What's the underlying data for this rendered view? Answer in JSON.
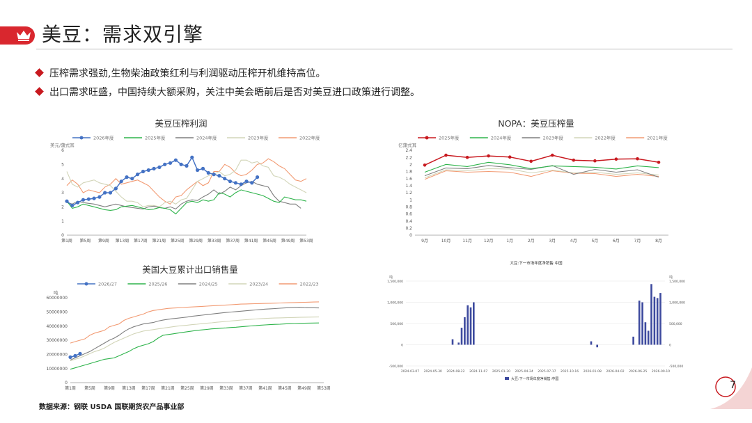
{
  "page": {
    "title": "美豆：需求双引擎",
    "bullets": [
      "压榨需求强劲,生物柴油政策红利与利润驱动压榨开机维持高位。",
      "出口需求旺盛，中国持续大额采购，关注中美会晤前后是否对美豆进口政策进行调整。"
    ],
    "source": "数据来源：钢联 USDA 国联期货农产品事业部",
    "page_number": "7"
  },
  "chart_data": [
    {
      "type": "line",
      "title": "美豆压榨利润",
      "ylabel": "美元/蒲式耳",
      "ylim": [
        0,
        6
      ],
      "yticks": [
        0,
        1,
        2,
        3,
        4,
        5,
        6
      ],
      "xticklabels": [
        "第1周",
        "第5周",
        "第9周",
        "第13周",
        "第17周",
        "第21周",
        "第25周",
        "第29周",
        "第33周",
        "第37周",
        "第41周",
        "第45周",
        "第49周",
        "第53周"
      ],
      "series": [
        {
          "name": "2026年度",
          "color": "#4472c4",
          "values": [
            2.4,
            2.1,
            2.3,
            2.5,
            2.55,
            2.6,
            2.7,
            3.0,
            3.0,
            3.3,
            3.8,
            4.1,
            4.0,
            4.3,
            4.5,
            4.6,
            4.7,
            4.8,
            5.0,
            5.1,
            5.3,
            5.0,
            4.9,
            5.5,
            4.6,
            4.7,
            4.4,
            4.3,
            4.2,
            4.0,
            3.8,
            3.7,
            3.6,
            3.8,
            3.7,
            4.1
          ]
        },
        {
          "name": "2025年度",
          "color": "#2db34a",
          "values": [
            2.4,
            1.9,
            2.0,
            2.2,
            2.1,
            2.0,
            1.9,
            1.8,
            1.75,
            1.8,
            2.0,
            2.05,
            2.1,
            2.0,
            1.9,
            1.8,
            1.85,
            1.95,
            1.9,
            1.8,
            1.5,
            1.9,
            2.3,
            2.4,
            2.3,
            2.5,
            2.4,
            2.5,
            3.0,
            2.9,
            2.7,
            3.0,
            3.2,
            3.1,
            3.0,
            2.9,
            2.8,
            2.6,
            2.4,
            2.3,
            2.7,
            2.6,
            2.5,
            2.5,
            2.4
          ]
        },
        {
          "name": "2024年度",
          "color": "#7f7f7f",
          "values": [
            2.3,
            2.2,
            2.4,
            2.3,
            2.25,
            2.2,
            2.1,
            2.0,
            2.1,
            2.2,
            2.1,
            2.0,
            1.95,
            1.9,
            1.85,
            2.0,
            2.05,
            1.95,
            1.9,
            2.0,
            1.85,
            2.2,
            2.4,
            2.5,
            2.45,
            2.7,
            2.9,
            3.2,
            2.9,
            3.1,
            3.4,
            3.2,
            3.5,
            3.7,
            3.8,
            3.6,
            3.5,
            3.4,
            2.8,
            2.4,
            2.3,
            2.2,
            2.2,
            1.9
          ]
        },
        {
          "name": "2023年度",
          "color": "#d2d5b8",
          "values": [
            4.5,
            3.6,
            3.4,
            3.7,
            3.8,
            3.9,
            3.7,
            3.6,
            3.5,
            3.1,
            2.7,
            2.4,
            2.4,
            2.3,
            2.0,
            2.1,
            2.1,
            2.0,
            2.3,
            2.4,
            2.2,
            2.5,
            2.6,
            3.2,
            3.8,
            4.0,
            4.2,
            4.3,
            4.5,
            4.2,
            4.3,
            4.6,
            5.3,
            5.3,
            5.1,
            5.2,
            4.9,
            4.8,
            4.2,
            4.1,
            3.9,
            3.6,
            3.4,
            3.2,
            3.0
          ]
        },
        {
          "name": "2022年度",
          "color": "#f29a72",
          "values": [
            3.5,
            3.9,
            3.6,
            3.0,
            3.2,
            3.1,
            3.0,
            3.4,
            3.6,
            4.0,
            3.6,
            3.7,
            3.8,
            3.9,
            3.7,
            3.5,
            3.1,
            2.7,
            2.4,
            2.2,
            2.7,
            2.8,
            3.2,
            3.5,
            3.8,
            3.5,
            3.7,
            4.5,
            4.5,
            5.0,
            4.8,
            4.4,
            4.2,
            4.3,
            4.6,
            5.0,
            5.1,
            5.4,
            5.2,
            4.9,
            4.7,
            4.3,
            3.9,
            3.8,
            4.0
          ]
        }
      ]
    },
    {
      "type": "line",
      "title": "NOPA：美豆压榨量",
      "ylabel": "亿蒲式耳",
      "ylim": [
        0,
        2.4
      ],
      "yticks": [
        0,
        0.2,
        0.4,
        0.6,
        0.8,
        1,
        1.2,
        1.4,
        1.6,
        1.8,
        2,
        2.2,
        2.4
      ],
      "xticklabels": [
        "9月",
        "10月",
        "11月",
        "12月",
        "1月",
        "2月",
        "3月",
        "4月",
        "5月",
        "6月",
        "7月",
        "8月"
      ],
      "series": [
        {
          "name": "2025年度",
          "color": "#c8191f",
          "values": [
            1.98,
            2.26,
            2.2,
            2.24,
            2.21,
            2.09,
            2.26,
            2.12,
            2.1,
            2.15,
            2.16,
            2.06
          ]
        },
        {
          "name": "2024年度",
          "color": "#2db34a",
          "values": [
            1.78,
            2.0,
            1.94,
            2.06,
            1.99,
            1.88,
            1.96,
            1.94,
            1.92,
            1.87,
            1.96,
            1.91
          ]
        },
        {
          "name": "2023年度",
          "color": "#7f7f7f",
          "values": [
            1.68,
            1.9,
            1.88,
            1.97,
            1.91,
            1.86,
            1.97,
            1.72,
            1.86,
            1.78,
            1.85,
            1.64
          ]
        },
        {
          "name": "2022年度",
          "color": "#d2d5b8",
          "values": [
            1.62,
            1.85,
            1.82,
            1.88,
            1.87,
            1.76,
            1.84,
            1.76,
            1.78,
            1.72,
            1.76,
            1.7
          ]
        },
        {
          "name": "2021年度",
          "color": "#f29a72",
          "values": [
            1.58,
            1.82,
            1.78,
            1.8,
            1.78,
            1.66,
            1.82,
            1.75,
            1.74,
            1.66,
            1.72,
            1.66
          ]
        }
      ]
    },
    {
      "type": "line",
      "title": "美国大豆累计出口销售量",
      "ylabel": "吨",
      "ylim": [
        0,
        60000000
      ],
      "yticks": [
        0,
        10000000,
        20000000,
        30000000,
        40000000,
        50000000,
        60000000
      ],
      "xticklabels": [
        "第1周",
        "第5周",
        "第9周",
        "第13周",
        "第17周",
        "第21周",
        "第25周",
        "第29周",
        "第33周",
        "第37周",
        "第41周",
        "第45周",
        "第49周",
        "第53周"
      ],
      "series": [
        {
          "name": "2026/27",
          "color": "#4472c4",
          "values": [
            18000000,
            19000000,
            20500000
          ]
        },
        {
          "name": "2025/26",
          "color": "#2db34a",
          "values": [
            9500000,
            10500000,
            11500000,
            12500000,
            13500000,
            14500000,
            15500000,
            16500000,
            17000000,
            17500000,
            19000000,
            20500000,
            22000000,
            24000000,
            25500000,
            26500000,
            27500000,
            29000000,
            31500000,
            33500000,
            34000000,
            34500000,
            35000000,
            35500000,
            36000000,
            36500000,
            37000000,
            37300000,
            37600000,
            38000000,
            38200000,
            38500000,
            38700000,
            39000000,
            39200000,
            39500000,
            39800000,
            40100000,
            40300000,
            40600000,
            40800000,
            41000000,
            41200000,
            41300000,
            41500000,
            41700000,
            41800000,
            41900000,
            42000000,
            42100000,
            42150000,
            42200000
          ]
        },
        {
          "name": "2024/25",
          "color": "#7f7f7f",
          "values": [
            16000000,
            17500000,
            19000000,
            20500000,
            22000000,
            24000000,
            26000000,
            28000000,
            30000000,
            31500000,
            33500000,
            36000000,
            38000000,
            39500000,
            40500000,
            41500000,
            42000000,
            42500000,
            43500000,
            44200000,
            44800000,
            45200000,
            45600000,
            46000000,
            46400000,
            46900000,
            47300000,
            47700000,
            48100000,
            48500000,
            48900000,
            49300000,
            49600000,
            49900000,
            50200000,
            50500000,
            50800000,
            51100000,
            51400000,
            51700000,
            52000000,
            52200000,
            52400000,
            52600000,
            52800000,
            53000000,
            53200000,
            53300000,
            53000000,
            52900000,
            52900000,
            52800000
          ]
        },
        {
          "name": "2023/24",
          "color": "#d2d5b8",
          "values": [
            15500000,
            16500000,
            17500000,
            19000000,
            20500000,
            22000000,
            23000000,
            24500000,
            26500000,
            28500000,
            30000000,
            31500000,
            33000000,
            34500000,
            35500000,
            36500000,
            37000000,
            37500000,
            38000000,
            38500000,
            39000000,
            39500000,
            40000000,
            40300000,
            40600000,
            41000000,
            41300000,
            41700000,
            42000000,
            42300000,
            42700000,
            43000000,
            43300000,
            43600000,
            43900000,
            44200000,
            44500000,
            44800000,
            45000000,
            45200000,
            45400000,
            45600000,
            45700000,
            45800000,
            45900000,
            46000000,
            46100000,
            46200000,
            46300000,
            46350000,
            46400000,
            46450000
          ]
        },
        {
          "name": "2022/23",
          "color": "#f29a72",
          "values": [
            28000000,
            29000000,
            30000000,
            31000000,
            33500000,
            35000000,
            36000000,
            37000000,
            39500000,
            40500000,
            41500000,
            44000000,
            45500000,
            46500000,
            47500000,
            48500000,
            50000000,
            51000000,
            51500000,
            52000000,
            52500000,
            52700000,
            52900000,
            53100000,
            53300000,
            53500000,
            53700000,
            53900000,
            54100000,
            54300000,
            54500000,
            54700000,
            54900000,
            55100000,
            55300000,
            55500000,
            55600000,
            55700000,
            55800000,
            55900000,
            56000000,
            56100000,
            56200000,
            56300000,
            56400000,
            56500000,
            56600000,
            56700000,
            56800000,
            56900000,
            57000000,
            57100000
          ]
        }
      ]
    },
    {
      "type": "bar",
      "title": "大豆:下一市场年度净销售:中国",
      "ylabel": "吨",
      "ylim": [
        -500000,
        1500000
      ],
      "yticks": [
        -500000,
        0,
        500000,
        1000000,
        1500000
      ],
      "yticklabels": [
        "-500,000",
        "0",
        "500,000",
        "1,000,000",
        "1,500,000"
      ],
      "xticklabels": [
        "2024-03-07",
        "2024-05-30",
        "2024-08-22",
        "2024-11-07",
        "2025-01-30",
        "2025-04-24",
        "2025-07-17",
        "2025-10-16",
        "2026-01-08",
        "2026-04-02",
        "2026-06-25",
        "2026-09-10"
      ],
      "series_name": "大豆:下一市场年度净销售:中国",
      "color": "#3d4a9e",
      "x": [
        15,
        17,
        18,
        19,
        20,
        21,
        22,
        61,
        63,
        75,
        77,
        78,
        79,
        80,
        81,
        82,
        83,
        84
      ],
      "values": [
        130000,
        50000,
        400000,
        650000,
        930000,
        880000,
        1000000,
        80000,
        -60000,
        190000,
        1040000,
        1000000,
        530000,
        330000,
        1430000,
        1130000,
        1100000,
        1220000
      ],
      "n_points": 86
    }
  ]
}
